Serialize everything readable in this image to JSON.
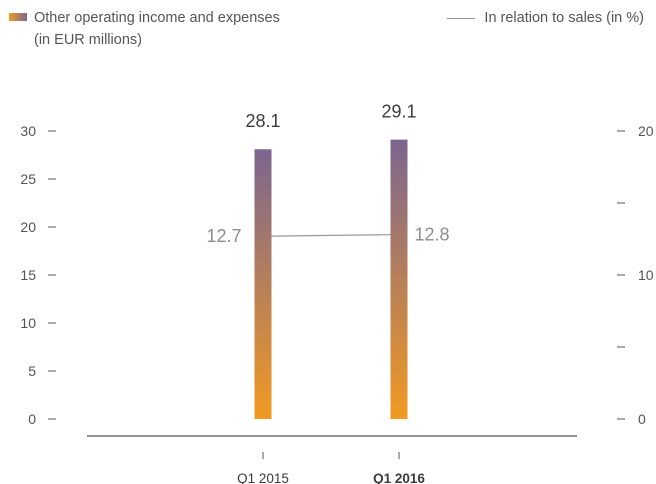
{
  "legend": {
    "bars_line1": "Other operating income and expenses",
    "bars_line2": "(in EUR millions)",
    "line": "In relation to sales (in %)"
  },
  "colors": {
    "bar_bottom": "#f19a22",
    "bar_top": "#7b6590",
    "line": "#9a9a9a",
    "axis": "#555555"
  },
  "chart_data": {
    "type": "bar",
    "categories": [
      "Q1 2015",
      "Q1 2016"
    ],
    "category_bold": [
      false,
      true
    ],
    "series": [
      {
        "name": "Other operating income and expenses (in EUR millions)",
        "type": "bar",
        "axis": "left",
        "values": [
          28.1,
          29.1
        ],
        "labels": [
          "28.1",
          "29.1"
        ]
      },
      {
        "name": "In relation to sales (in %)",
        "type": "line",
        "axis": "right",
        "values": [
          12.7,
          12.8
        ],
        "labels": [
          "12.7",
          "12.8"
        ]
      }
    ],
    "y_left": {
      "min": 0,
      "max": 30,
      "ticks": [
        0,
        5,
        10,
        15,
        20,
        25,
        30
      ],
      "tick_labels": [
        "0",
        "5",
        "10",
        "15",
        "20",
        "25",
        "30"
      ]
    },
    "y_right": {
      "min": 0,
      "max": 20,
      "ticks": [
        0,
        5,
        10,
        15,
        20
      ],
      "tick_labels": [
        "0",
        "",
        "10",
        "",
        "20"
      ]
    },
    "grid": false,
    "legend_position": "top"
  }
}
